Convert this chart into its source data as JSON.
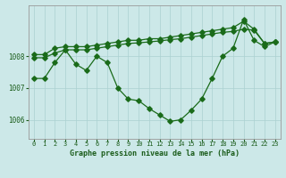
{
  "xlabel": "Graphe pression niveau de la mer (hPa)",
  "bg_color": "#cce8e8",
  "line_color": "#1a6b1a",
  "grid_color": "#aad0d0",
  "axis_label_color": "#1a5c1a",
  "ylim": [
    1005.4,
    1009.6
  ],
  "yticks": [
    1006,
    1007,
    1008
  ],
  "xlim": [
    -0.5,
    23.5
  ],
  "xticks": [
    0,
    1,
    2,
    3,
    4,
    5,
    6,
    7,
    8,
    9,
    10,
    11,
    12,
    13,
    14,
    15,
    16,
    17,
    18,
    19,
    20,
    21,
    22,
    23
  ],
  "series1_y": [
    1007.3,
    1007.3,
    1007.8,
    1008.2,
    1007.75,
    1007.55,
    1008.0,
    1007.8,
    1007.0,
    1006.65,
    1006.6,
    1006.35,
    1006.15,
    1005.95,
    1006.0,
    1006.3,
    1006.65,
    1007.3,
    1008.0,
    1008.25,
    1009.15,
    1008.5,
    1008.3,
    1008.45
  ],
  "series2_y": [
    1008.05,
    1008.05,
    1008.25,
    1008.3,
    1008.3,
    1008.3,
    1008.35,
    1008.4,
    1008.45,
    1008.5,
    1008.5,
    1008.55,
    1008.55,
    1008.6,
    1008.65,
    1008.7,
    1008.75,
    1008.8,
    1008.85,
    1008.9,
    1009.1,
    1008.85,
    1008.4,
    1008.45
  ],
  "series3_y": [
    1007.95,
    1007.95,
    1008.1,
    1008.2,
    1008.2,
    1008.2,
    1008.25,
    1008.3,
    1008.35,
    1008.4,
    1008.42,
    1008.45,
    1008.48,
    1008.52,
    1008.55,
    1008.6,
    1008.65,
    1008.7,
    1008.75,
    1008.78,
    1008.85,
    1008.82,
    1008.4,
    1008.45
  ]
}
